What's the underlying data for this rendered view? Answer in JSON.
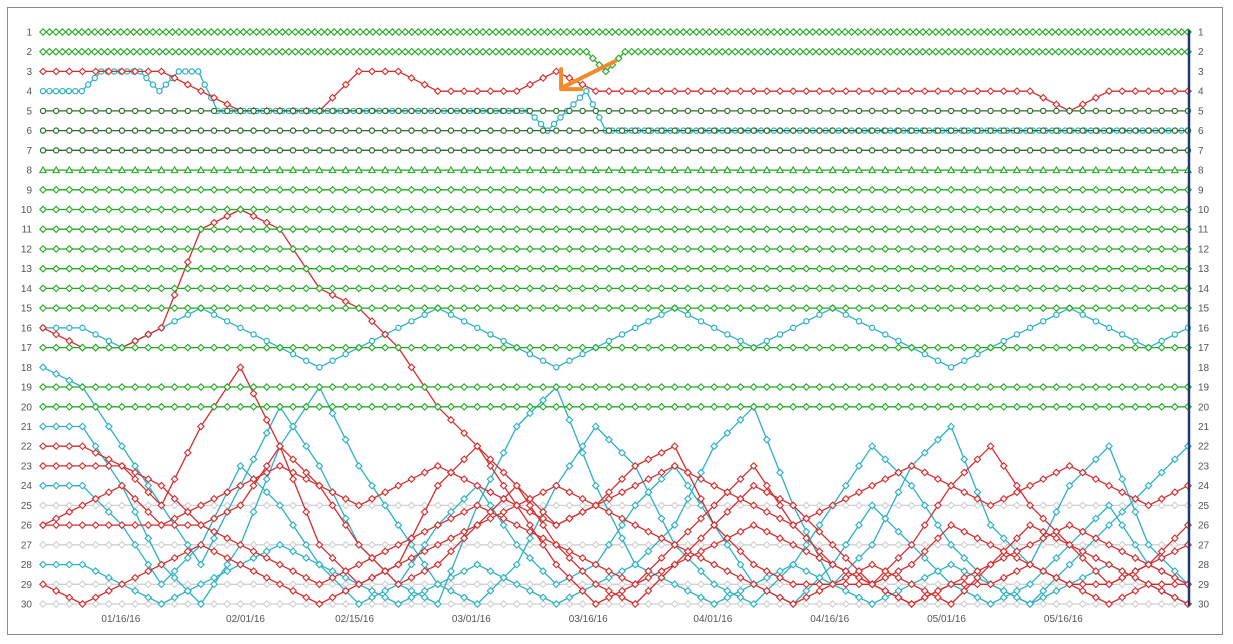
{
  "chart_data": {
    "type": "line",
    "title": "",
    "xlabel": "",
    "ylabel": "",
    "x_range": [
      "01/06/16",
      "06/01/16"
    ],
    "ylim": [
      1,
      30
    ],
    "y_inverted": true,
    "y_ticks": [
      "1",
      "2",
      "3",
      "4",
      "5",
      "6",
      "7",
      "8",
      "9",
      "10",
      "11",
      "12",
      "13",
      "14",
      "15",
      "16",
      "17",
      "18",
      "19",
      "20",
      "21",
      "22",
      "23",
      "24",
      "25",
      "26",
      "27",
      "28",
      "29",
      "30"
    ],
    "x_ticks": [
      "01/16/16",
      "02/01/16",
      "02/15/16",
      "03/01/16",
      "03/16/16",
      "04/01/16",
      "04/16/16",
      "05/01/16",
      "05/16/16"
    ],
    "y_axis_both_sides": true,
    "grid": false,
    "legend": "none",
    "colors": {
      "green": "#1faa1f",
      "dark_green": "#2d6e2d",
      "red": "#d62b2b",
      "teal": "#2bb0c4",
      "gray": "#cfcfcf",
      "arrow": "#f08a2c",
      "right_axis": "#1f3a6e"
    },
    "annotation": {
      "type": "arrow",
      "points_to": {
        "date": "03/12/16",
        "rank": 4
      }
    },
    "series": [
      {
        "color": "green",
        "marker": "diamond",
        "values": [
          1,
          1,
          1,
          1,
          1,
          1,
          1,
          1,
          1,
          1,
          1,
          1,
          1,
          1,
          1,
          1,
          1,
          1,
          1,
          1,
          1,
          1,
          1,
          1,
          1,
          1,
          1,
          1,
          1,
          1,
          1,
          1,
          1,
          1,
          1,
          1,
          1,
          1,
          1,
          1,
          1,
          1,
          1,
          1,
          1,
          1,
          1,
          1,
          1,
          1,
          1,
          1,
          1,
          1,
          1,
          1,
          1,
          1,
          1,
          1
        ]
      },
      {
        "color": "green",
        "marker": "diamond",
        "values": [
          2,
          2,
          2,
          2,
          2,
          2,
          2,
          2,
          2,
          2,
          2,
          2,
          2,
          2,
          2,
          2,
          2,
          2,
          2,
          2,
          2,
          2,
          2,
          2,
          2,
          2,
          2,
          2,
          2,
          3,
          2,
          2,
          2,
          2,
          2,
          2,
          2,
          2,
          2,
          2,
          2,
          2,
          2,
          2,
          2,
          2,
          2,
          2,
          2,
          2,
          2,
          2,
          2,
          2,
          2,
          2,
          2,
          2,
          2,
          2
        ]
      },
      {
        "color": "red",
        "marker": "diamond",
        "values": [
          3,
          3,
          3,
          3,
          4,
          5,
          5,
          5,
          3,
          3,
          4,
          4,
          4,
          3,
          4,
          4,
          4,
          4,
          4,
          4,
          4,
          4,
          4,
          4,
          4,
          4,
          5,
          4,
          4,
          4
        ]
      },
      {
        "color": "teal",
        "marker": "circle",
        "values": [
          4,
          4,
          4,
          3,
          3,
          3,
          4,
          3,
          3,
          5,
          5,
          5,
          5,
          5,
          5,
          5,
          5,
          5,
          5,
          5,
          5,
          5,
          5,
          5,
          5,
          5,
          6,
          5,
          4,
          6,
          6,
          6,
          6,
          6,
          6,
          6,
          6,
          6,
          6,
          6,
          6,
          6,
          6,
          6,
          6,
          6,
          6,
          6,
          6,
          6,
          6,
          6,
          6,
          6,
          6,
          6,
          6,
          6,
          6,
          6
        ]
      },
      {
        "color": "dark_green",
        "marker": "circle",
        "values": [
          5,
          5,
          5,
          5,
          5,
          5,
          5,
          5,
          5,
          5,
          5,
          5,
          5,
          5,
          5,
          5,
          5,
          5,
          5,
          5,
          5,
          5,
          5,
          5,
          5,
          5,
          5,
          5,
          5,
          5
        ]
      },
      {
        "color": "dark_green",
        "marker": "circle",
        "values": [
          6,
          6,
          6,
          6,
          6,
          6,
          6,
          6,
          6,
          6,
          6,
          6,
          6,
          6,
          6,
          6,
          6,
          6,
          6,
          6,
          6,
          6,
          6,
          6,
          6,
          6,
          6,
          6,
          6,
          6
        ]
      },
      {
        "color": "dark_green",
        "marker": "circle",
        "values": [
          7,
          7,
          7,
          7,
          7,
          7,
          7,
          7,
          7,
          7,
          7,
          7,
          7,
          7,
          7,
          7,
          7,
          7,
          7,
          7,
          7,
          7,
          7,
          7,
          7,
          7,
          7,
          7,
          7,
          7
        ]
      },
      {
        "color": "green",
        "marker": "triangle",
        "values": [
          8,
          8,
          8,
          8,
          8,
          8,
          8,
          8,
          8,
          8,
          8,
          8,
          8,
          8,
          8,
          8,
          8,
          8,
          8,
          8,
          8,
          8,
          8,
          8,
          8,
          8,
          8,
          8,
          8,
          8
        ]
      },
      {
        "color": "green",
        "marker": "diamond",
        "values": [
          9,
          9,
          9,
          9,
          9,
          9,
          9,
          9,
          9,
          9,
          9,
          9,
          9,
          9,
          9,
          9,
          9,
          9,
          9,
          9,
          9,
          9,
          9,
          9,
          9,
          9,
          9,
          9,
          9,
          9
        ]
      },
      {
        "color": "green",
        "marker": "diamond",
        "values": [
          10,
          10,
          10,
          10,
          10,
          10,
          10,
          10,
          10,
          10,
          10,
          10,
          10,
          10,
          10,
          10,
          10,
          10,
          10,
          10,
          10,
          10,
          10,
          10,
          10,
          10,
          10,
          10,
          10,
          10
        ]
      },
      {
        "color": "green",
        "marker": "diamond",
        "values": [
          11,
          11,
          11,
          11,
          11,
          11,
          11,
          11,
          11,
          11,
          11,
          11,
          11,
          11,
          11,
          11,
          11,
          11,
          11,
          11,
          11,
          11,
          11,
          11,
          11,
          11,
          11,
          11,
          11,
          11
        ]
      },
      {
        "color": "green",
        "marker": "diamond",
        "values": [
          12,
          12,
          12,
          12,
          12,
          12,
          12,
          12,
          12,
          12,
          12,
          12,
          12,
          12,
          12,
          12,
          12,
          12,
          12,
          12,
          12,
          12,
          12,
          12,
          12,
          12,
          12,
          12,
          12,
          12
        ]
      },
      {
        "color": "green",
        "marker": "diamond",
        "values": [
          13,
          13,
          13,
          13,
          13,
          13,
          13,
          13,
          13,
          13,
          13,
          13,
          13,
          13,
          13,
          13,
          13,
          13,
          13,
          13,
          13,
          13,
          13,
          13,
          13,
          13,
          13,
          13,
          13,
          13
        ]
      },
      {
        "color": "green",
        "marker": "diamond",
        "values": [
          14,
          14,
          14,
          14,
          14,
          14,
          14,
          14,
          14,
          14,
          14,
          14,
          14,
          14,
          14,
          14,
          14,
          14,
          14,
          14,
          14,
          14,
          14,
          14,
          14,
          14,
          14,
          14,
          14,
          14
        ]
      },
      {
        "color": "green",
        "marker": "diamond",
        "values": [
          15,
          15,
          15,
          15,
          15,
          15,
          15,
          15,
          15,
          15,
          15,
          15,
          15,
          15,
          15,
          15,
          15,
          15,
          15,
          15,
          15,
          15,
          15,
          15,
          15,
          15,
          15,
          15,
          15,
          15
        ]
      },
      {
        "color": "red",
        "marker": "diamond",
        "values": [
          16,
          17,
          17,
          16,
          11,
          10,
          11,
          14,
          15,
          17,
          20,
          22,
          24,
          26,
          25,
          23,
          22,
          26,
          28,
          29,
          29,
          29,
          30,
          29,
          29,
          28,
          29,
          30,
          29,
          29
        ]
      },
      {
        "color": "green",
        "marker": "diamond",
        "values": [
          17,
          17,
          17,
          17,
          17,
          17,
          17,
          17,
          17,
          17,
          17,
          17,
          17,
          17,
          17,
          17,
          17,
          17,
          17,
          17,
          17,
          17,
          17,
          17,
          17,
          17,
          17,
          17,
          17,
          17
        ]
      },
      {
        "color": "teal",
        "marker": "diamond",
        "values": [
          18,
          19,
          22,
          25,
          28,
          24,
          20,
          23,
          27,
          29,
          30,
          25,
          21,
          19,
          24,
          28,
          26,
          22,
          20,
          25,
          29,
          27,
          23,
          21,
          26,
          28,
          24,
          22,
          27,
          29
        ]
      },
      {
        "color": "green",
        "marker": "diamond",
        "values": [
          19,
          19,
          19,
          19,
          19,
          19,
          19,
          19,
          19,
          19,
          19,
          19,
          19,
          19,
          19,
          19,
          19,
          19,
          19,
          19,
          19,
          19,
          19,
          19,
          19,
          19,
          19,
          19,
          19,
          19
        ]
      },
      {
        "color": "green",
        "marker": "diamond",
        "values": [
          20,
          20,
          20,
          20,
          20,
          20,
          20,
          20,
          20,
          20,
          20,
          20,
          20,
          20,
          20,
          20,
          20,
          20,
          20,
          20,
          20,
          20,
          20,
          20,
          20,
          20,
          20,
          20,
          20,
          20
        ]
      },
      {
        "color": "teal",
        "marker": "diamond",
        "values": [
          21,
          21,
          24,
          28,
          30,
          27,
          22,
          19,
          23,
          26,
          29,
          30,
          28,
          24,
          21,
          23,
          27,
          29,
          30,
          28,
          25,
          22,
          24,
          27,
          29,
          30,
          28,
          26,
          24,
          22
        ]
      },
      {
        "color": "red",
        "marker": "diamond",
        "values": [
          22,
          22,
          23,
          25,
          21,
          18,
          22,
          27,
          29,
          28,
          24,
          22,
          25,
          28,
          30,
          29,
          27,
          25,
          23,
          26,
          28,
          29,
          27,
          24,
          22,
          25,
          27,
          29,
          28,
          26
        ]
      },
      {
        "color": "red",
        "marker": "diamond",
        "values": [
          23,
          23,
          23,
          24,
          26,
          25,
          22,
          24,
          27,
          29,
          28,
          26,
          24,
          27,
          29,
          30,
          28,
          26,
          24,
          25,
          27,
          29,
          28,
          26,
          27,
          28,
          29,
          29,
          28,
          27
        ]
      },
      {
        "color": "teal",
        "marker": "diamond",
        "values": [
          24,
          24,
          26,
          29,
          27,
          23,
          25,
          28,
          30,
          29,
          26,
          24,
          27,
          29,
          28,
          25,
          23,
          26,
          29,
          30,
          28,
          25,
          27,
          29,
          30,
          29,
          27,
          25,
          28,
          29
        ]
      },
      {
        "color": "gray",
        "marker": "diamond",
        "values": [
          25,
          25,
          25,
          25,
          25,
          25,
          25,
          25,
          25,
          25,
          25,
          25,
          25,
          25,
          25,
          25,
          25,
          25,
          25,
          25,
          25,
          25,
          25,
          25,
          25,
          25,
          25,
          25,
          25,
          25
        ]
      },
      {
        "color": "red",
        "marker": "diamond",
        "values": [
          26,
          26,
          26,
          26,
          26,
          27,
          28,
          29,
          28,
          27,
          26,
          25,
          26,
          27,
          28,
          29,
          28,
          27,
          26,
          27,
          28,
          29,
          30,
          29,
          28,
          27,
          26,
          27,
          28,
          29
        ]
      },
      {
        "color": "gray",
        "marker": "diamond",
        "values": [
          27,
          27,
          27,
          27,
          27,
          27,
          27,
          27,
          27,
          27,
          27,
          27,
          27,
          27,
          27,
          27,
          27,
          27,
          27,
          27,
          27,
          27,
          27,
          27,
          27,
          27,
          27,
          27,
          27,
          27
        ]
      },
      {
        "color": "teal",
        "marker": "diamond",
        "values": [
          28,
          28,
          29,
          30,
          29,
          28,
          27,
          28,
          29,
          30,
          29,
          28,
          29,
          30,
          29,
          28,
          29,
          30,
          29,
          28,
          29,
          30,
          29,
          28,
          29,
          30,
          29,
          28,
          29,
          30
        ]
      },
      {
        "color": "gray",
        "marker": "diamond",
        "values": [
          29,
          29,
          29,
          29,
          29,
          29,
          29,
          29,
          29,
          29,
          29,
          29,
          29,
          29,
          29,
          29,
          29,
          29,
          29,
          29,
          29,
          29,
          29,
          29,
          29,
          29,
          29,
          29,
          29,
          29
        ]
      },
      {
        "color": "gray",
        "marker": "diamond",
        "values": [
          30,
          30,
          30,
          30,
          30,
          30,
          30,
          30,
          30,
          30,
          30,
          30,
          30,
          30,
          30,
          30,
          30,
          30,
          30,
          30,
          30,
          30,
          30,
          30,
          30,
          30,
          30,
          30,
          30,
          30
        ]
      },
      {
        "color": "red",
        "marker": "diamond",
        "values": [
          26,
          25,
          24,
          26,
          25,
          24,
          23,
          24,
          25,
          24,
          23,
          24,
          25,
          26,
          25,
          24,
          23,
          24,
          25,
          26,
          25,
          24,
          23,
          24,
          25,
          24,
          23,
          24,
          25,
          24
        ]
      },
      {
        "color": "red",
        "marker": "diamond",
        "values": [
          29,
          30,
          29,
          28,
          27,
          28,
          29,
          30,
          29,
          28,
          27,
          26,
          25,
          24,
          25,
          26,
          27,
          28,
          29,
          30,
          29,
          28,
          29,
          30,
          28,
          26,
          27,
          28,
          29,
          30
        ]
      },
      {
        "color": "teal",
        "marker": "circle",
        "values": [
          16,
          16,
          17,
          16,
          15,
          16,
          17,
          18,
          17,
          16,
          15,
          16,
          17,
          18,
          17,
          16,
          15,
          16,
          17,
          16,
          15,
          16,
          17,
          18,
          17,
          16,
          15,
          16,
          17,
          16
        ]
      }
    ]
  }
}
